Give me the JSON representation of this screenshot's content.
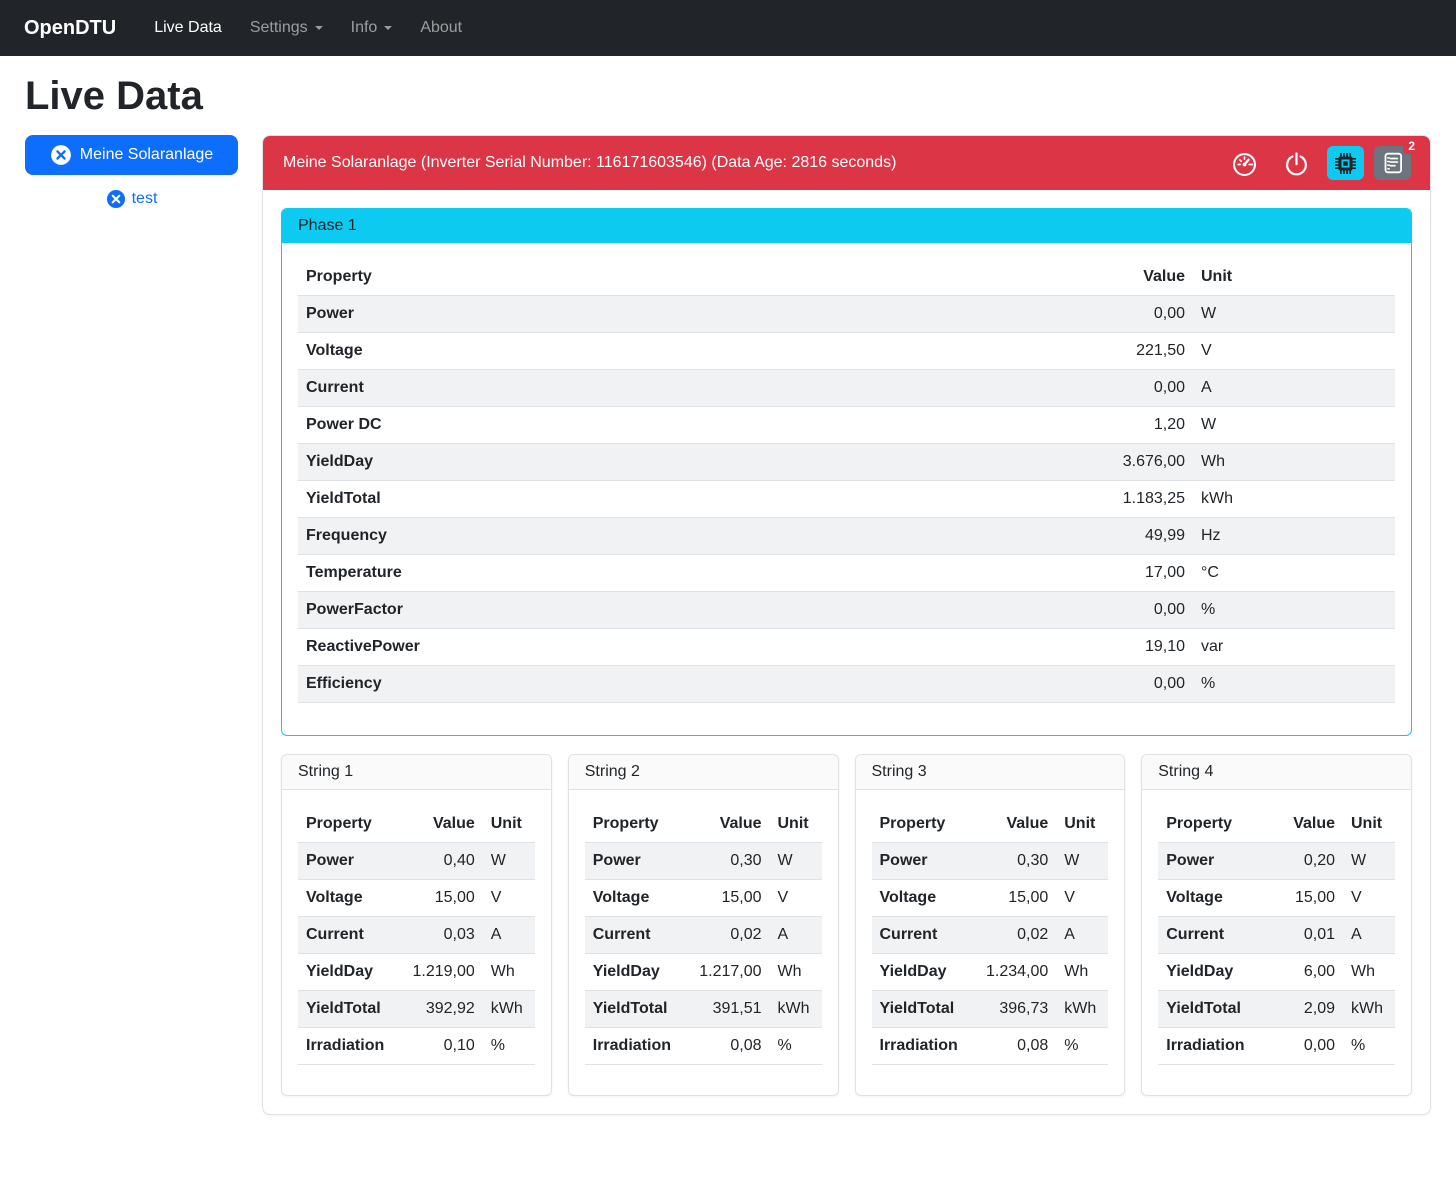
{
  "navbar": {
    "brand": "OpenDTU",
    "items": [
      {
        "label": "Live Data",
        "active": true,
        "dropdown": false
      },
      {
        "label": "Settings",
        "active": false,
        "dropdown": true
      },
      {
        "label": "Info",
        "active": false,
        "dropdown": true
      },
      {
        "label": "About",
        "active": false,
        "dropdown": false
      }
    ]
  },
  "page": {
    "title": "Live Data"
  },
  "sidebar": {
    "inverters": [
      {
        "label": "Meine Solaranlage",
        "active": true,
        "icon": "x-circle-icon"
      },
      {
        "label": "test",
        "active": false,
        "icon": "x-circle-icon"
      }
    ]
  },
  "inverter_panel": {
    "header": "Meine Solaranlage (Inverter Serial Number: 116171603546) (Data Age: 2816 seconds)",
    "actions": [
      {
        "icon": "speedometer-icon"
      },
      {
        "icon": "power-icon"
      },
      {
        "icon": "cpu-icon",
        "active": true
      },
      {
        "icon": "journal-text-icon",
        "badge": "2"
      }
    ],
    "journal_badge": "2"
  },
  "phase": {
    "title": "Phase 1",
    "columns": [
      "Property",
      "Value",
      "Unit"
    ],
    "rows": [
      [
        "Power",
        "0,00",
        "W"
      ],
      [
        "Voltage",
        "221,50",
        "V"
      ],
      [
        "Current",
        "0,00",
        "A"
      ],
      [
        "Power DC",
        "1,20",
        "W"
      ],
      [
        "YieldDay",
        "3.676,00",
        "Wh"
      ],
      [
        "YieldTotal",
        "1.183,25",
        "kWh"
      ],
      [
        "Frequency",
        "49,99",
        "Hz"
      ],
      [
        "Temperature",
        "17,00",
        "°C"
      ],
      [
        "PowerFactor",
        "0,00",
        "%"
      ],
      [
        "ReactivePower",
        "19,10",
        "var"
      ],
      [
        "Efficiency",
        "0,00",
        "%"
      ]
    ]
  },
  "strings": [
    {
      "title": "String 1",
      "columns": [
        "Property",
        "Value",
        "Unit"
      ],
      "rows": [
        [
          "Power",
          "0,40",
          "W"
        ],
        [
          "Voltage",
          "15,00",
          "V"
        ],
        [
          "Current",
          "0,03",
          "A"
        ],
        [
          "YieldDay",
          "1.219,00",
          "Wh"
        ],
        [
          "YieldTotal",
          "392,92",
          "kWh"
        ],
        [
          "Irradiation",
          "0,10",
          "%"
        ]
      ]
    },
    {
      "title": "String 2",
      "columns": [
        "Property",
        "Value",
        "Unit"
      ],
      "rows": [
        [
          "Power",
          "0,30",
          "W"
        ],
        [
          "Voltage",
          "15,00",
          "V"
        ],
        [
          "Current",
          "0,02",
          "A"
        ],
        [
          "YieldDay",
          "1.217,00",
          "Wh"
        ],
        [
          "YieldTotal",
          "391,51",
          "kWh"
        ],
        [
          "Irradiation",
          "0,08",
          "%"
        ]
      ]
    },
    {
      "title": "String 3",
      "columns": [
        "Property",
        "Value",
        "Unit"
      ],
      "rows": [
        [
          "Power",
          "0,30",
          "W"
        ],
        [
          "Voltage",
          "15,00",
          "V"
        ],
        [
          "Current",
          "0,02",
          "A"
        ],
        [
          "YieldDay",
          "1.234,00",
          "Wh"
        ],
        [
          "YieldTotal",
          "396,73",
          "kWh"
        ],
        [
          "Irradiation",
          "0,08",
          "%"
        ]
      ]
    },
    {
      "title": "String 4",
      "columns": [
        "Property",
        "Value",
        "Unit"
      ],
      "rows": [
        [
          "Power",
          "0,20",
          "W"
        ],
        [
          "Voltage",
          "15,00",
          "V"
        ],
        [
          "Current",
          "0,01",
          "A"
        ],
        [
          "YieldDay",
          "6,00",
          "Wh"
        ],
        [
          "YieldTotal",
          "2,09",
          "kWh"
        ],
        [
          "Irradiation",
          "0,00",
          "%"
        ]
      ]
    }
  ],
  "colors": {
    "navbar_bg": "#212529",
    "primary": "#0d6efd",
    "danger": "#dc3545",
    "info": "#0dcaf0",
    "secondary": "#6c757d",
    "stripe": "#f1f2f3",
    "border": "#dee2e6"
  }
}
